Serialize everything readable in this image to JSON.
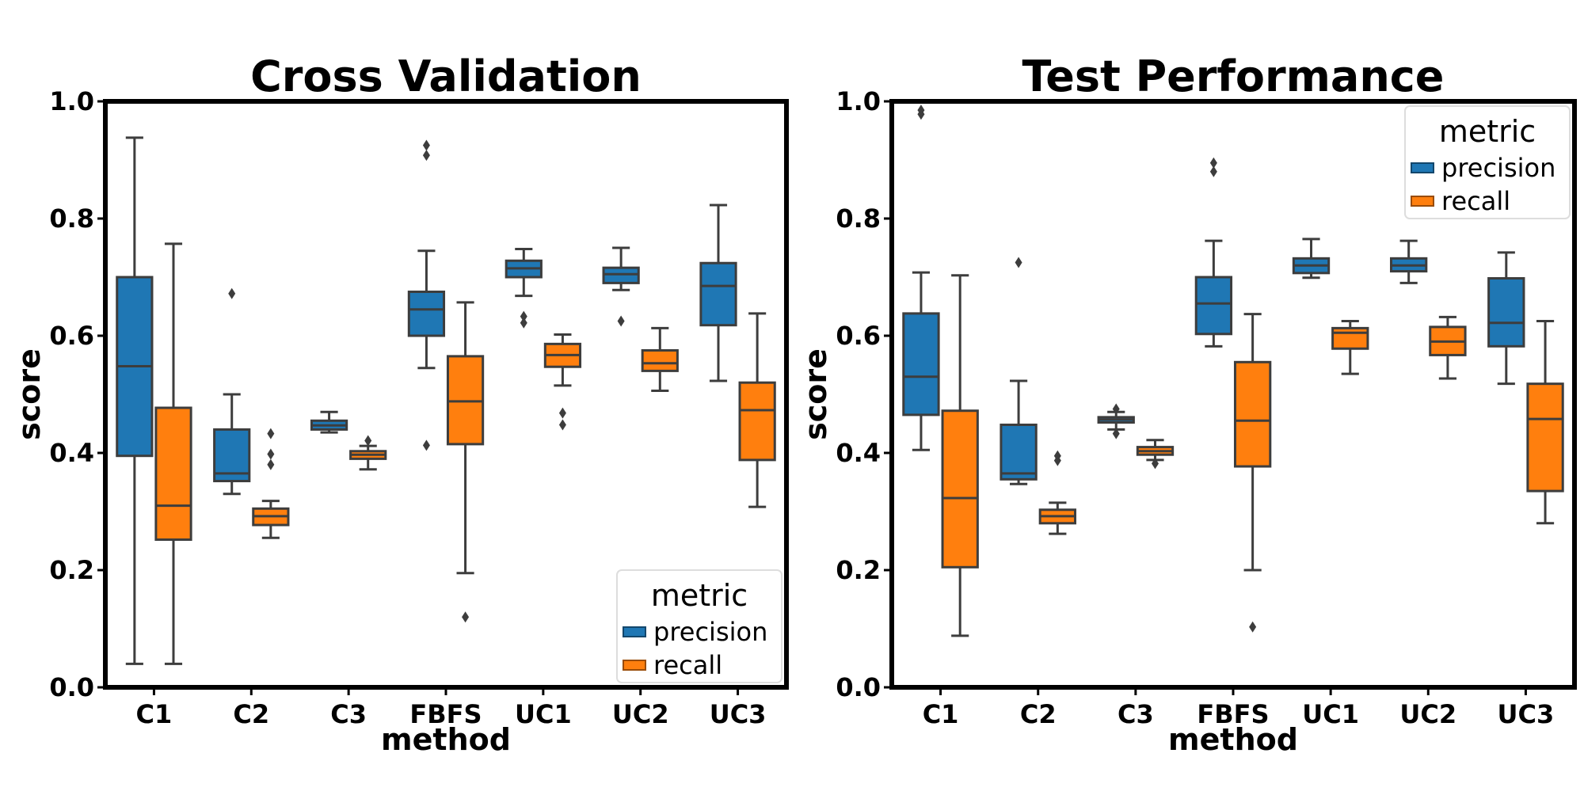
{
  "chart_data": [
    {
      "type": "box",
      "title": "Cross Validation",
      "xlabel": "method",
      "ylabel": "score",
      "ylim": [
        0.0,
        1.0
      ],
      "yticks": [
        "0.0",
        "0.2",
        "0.4",
        "0.6",
        "0.8",
        "1.0"
      ],
      "categories": [
        "C1",
        "C2",
        "C3",
        "FBFS",
        "UC1",
        "UC2",
        "UC3"
      ],
      "legend": {
        "title": "metric",
        "position": "bottom-right"
      },
      "series": [
        {
          "name": "precision",
          "color": "#1f77b4",
          "boxes": [
            {
              "whislo": 0.04,
              "q1": 0.395,
              "med": 0.548,
              "q3": 0.7,
              "whishi": 0.938,
              "fliers": []
            },
            {
              "whislo": 0.33,
              "q1": 0.352,
              "med": 0.365,
              "q3": 0.44,
              "whishi": 0.5,
              "fliers": [
                0.672
              ]
            },
            {
              "whislo": 0.435,
              "q1": 0.44,
              "med": 0.447,
              "q3": 0.455,
              "whishi": 0.47,
              "fliers": []
            },
            {
              "whislo": 0.545,
              "q1": 0.6,
              "med": 0.645,
              "q3": 0.675,
              "whishi": 0.745,
              "fliers": [
                0.925,
                0.908,
                0.413
              ]
            },
            {
              "whislo": 0.668,
              "q1": 0.7,
              "med": 0.715,
              "q3": 0.728,
              "whishi": 0.748,
              "fliers": [
                0.633,
                0.622
              ]
            },
            {
              "whislo": 0.678,
              "q1": 0.69,
              "med": 0.705,
              "q3": 0.716,
              "whishi": 0.75,
              "fliers": [
                0.625
              ]
            },
            {
              "whislo": 0.523,
              "q1": 0.618,
              "med": 0.685,
              "q3": 0.724,
              "whishi": 0.823,
              "fliers": []
            }
          ]
        },
        {
          "name": "recall",
          "color": "#ff7f0e",
          "boxes": [
            {
              "whislo": 0.04,
              "q1": 0.252,
              "med": 0.31,
              "q3": 0.477,
              "whishi": 0.757,
              "fliers": []
            },
            {
              "whislo": 0.255,
              "q1": 0.277,
              "med": 0.292,
              "q3": 0.305,
              "whishi": 0.318,
              "fliers": [
                0.433,
                0.398,
                0.38
              ]
            },
            {
              "whislo": 0.372,
              "q1": 0.39,
              "med": 0.397,
              "q3": 0.403,
              "whishi": 0.412,
              "fliers": [
                0.421
              ]
            },
            {
              "whislo": 0.195,
              "q1": 0.415,
              "med": 0.488,
              "q3": 0.565,
              "whishi": 0.657,
              "fliers": [
                0.12
              ]
            },
            {
              "whislo": 0.515,
              "q1": 0.547,
              "med": 0.567,
              "q3": 0.586,
              "whishi": 0.602,
              "fliers": [
                0.468,
                0.448
              ]
            },
            {
              "whislo": 0.506,
              "q1": 0.54,
              "med": 0.553,
              "q3": 0.575,
              "whishi": 0.613,
              "fliers": []
            },
            {
              "whislo": 0.308,
              "q1": 0.388,
              "med": 0.473,
              "q3": 0.52,
              "whishi": 0.638,
              "fliers": []
            }
          ]
        }
      ]
    },
    {
      "type": "box",
      "title": "Test Performance",
      "xlabel": "method",
      "ylabel": "score",
      "ylim": [
        0.0,
        1.0
      ],
      "yticks": [
        "0.0",
        "0.2",
        "0.4",
        "0.6",
        "0.8",
        "1.0"
      ],
      "categories": [
        "C1",
        "C2",
        "C3",
        "FBFS",
        "UC1",
        "UC2",
        "UC3"
      ],
      "legend": {
        "title": "metric",
        "position": "top-right"
      },
      "series": [
        {
          "name": "precision",
          "color": "#1f77b4",
          "boxes": [
            {
              "whislo": 0.405,
              "q1": 0.465,
              "med": 0.53,
              "q3": 0.638,
              "whishi": 0.708,
              "fliers": [
                0.985,
                0.978
              ]
            },
            {
              "whislo": 0.347,
              "q1": 0.355,
              "med": 0.365,
              "q3": 0.448,
              "whishi": 0.523,
              "fliers": [
                0.725
              ]
            },
            {
              "whislo": 0.44,
              "q1": 0.452,
              "med": 0.457,
              "q3": 0.461,
              "whishi": 0.47,
              "fliers": [
                0.475,
                0.433
              ]
            },
            {
              "whislo": 0.582,
              "q1": 0.603,
              "med": 0.655,
              "q3": 0.7,
              "whishi": 0.762,
              "fliers": [
                0.895,
                0.88
              ]
            },
            {
              "whislo": 0.699,
              "q1": 0.707,
              "med": 0.72,
              "q3": 0.732,
              "whishi": 0.765,
              "fliers": []
            },
            {
              "whislo": 0.69,
              "q1": 0.71,
              "med": 0.72,
              "q3": 0.732,
              "whishi": 0.762,
              "fliers": []
            },
            {
              "whislo": 0.518,
              "q1": 0.582,
              "med": 0.622,
              "q3": 0.698,
              "whishi": 0.742,
              "fliers": []
            }
          ]
        },
        {
          "name": "recall",
          "color": "#ff7f0e",
          "boxes": [
            {
              "whislo": 0.088,
              "q1": 0.205,
              "med": 0.323,
              "q3": 0.472,
              "whishi": 0.703,
              "fliers": []
            },
            {
              "whislo": 0.262,
              "q1": 0.28,
              "med": 0.292,
              "q3": 0.303,
              "whishi": 0.315,
              "fliers": [
                0.395,
                0.387
              ]
            },
            {
              "whislo": 0.388,
              "q1": 0.397,
              "med": 0.403,
              "q3": 0.41,
              "whishi": 0.422,
              "fliers": [
                0.382
              ]
            },
            {
              "whislo": 0.2,
              "q1": 0.377,
              "med": 0.455,
              "q3": 0.555,
              "whishi": 0.637,
              "fliers": [
                0.103
              ]
            },
            {
              "whislo": 0.535,
              "q1": 0.578,
              "med": 0.605,
              "q3": 0.613,
              "whishi": 0.625,
              "fliers": []
            },
            {
              "whislo": 0.527,
              "q1": 0.567,
              "med": 0.59,
              "q3": 0.615,
              "whishi": 0.632,
              "fliers": []
            },
            {
              "whislo": 0.28,
              "q1": 0.335,
              "med": 0.458,
              "q3": 0.518,
              "whishi": 0.625,
              "fliers": []
            }
          ]
        }
      ]
    }
  ]
}
